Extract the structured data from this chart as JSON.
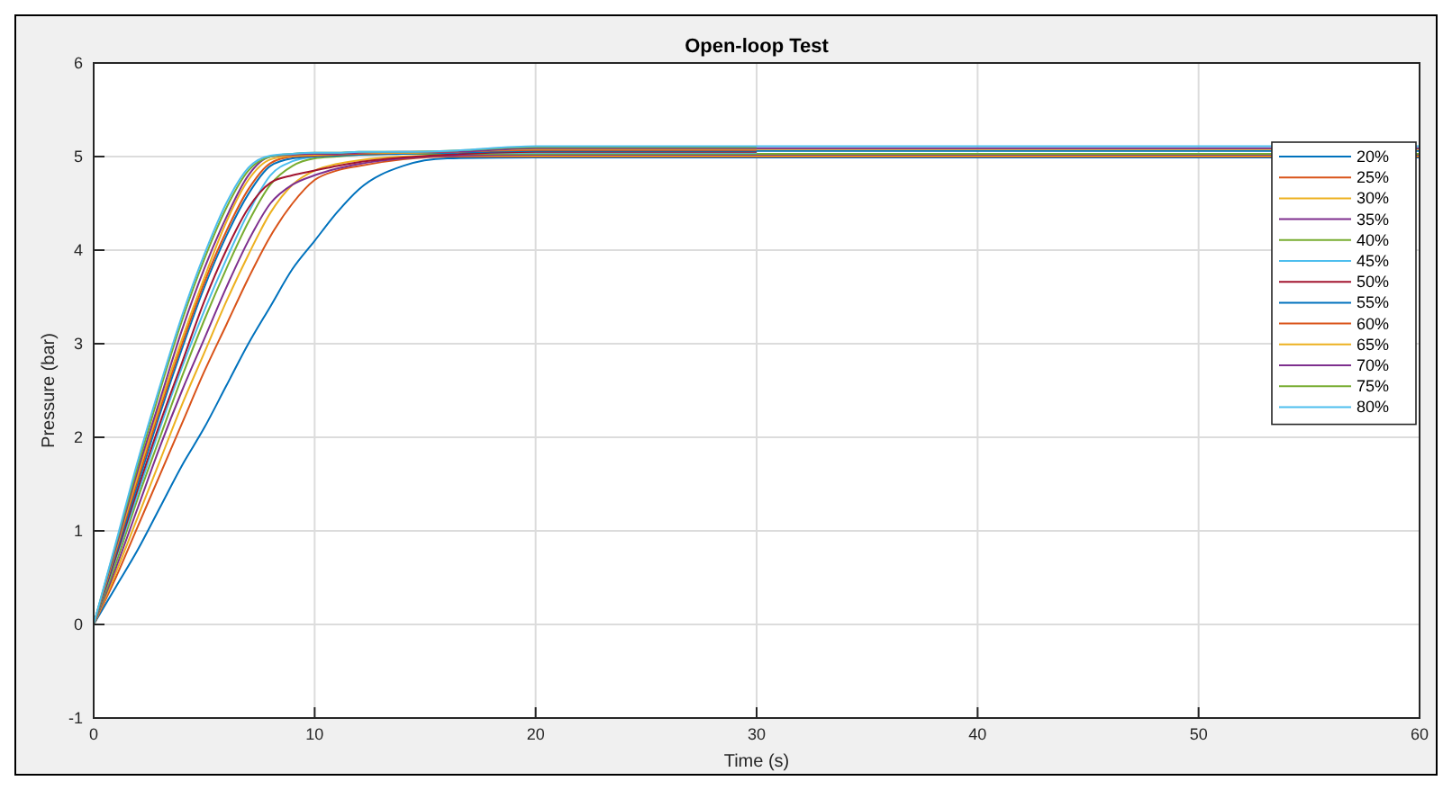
{
  "chart_data": {
    "type": "line",
    "title": "Open-loop Test",
    "xlabel": "Time (s)",
    "ylabel": "Pressure (bar)",
    "x": [
      0,
      1,
      2,
      3,
      4,
      5,
      6,
      7,
      8,
      9,
      10,
      11,
      12,
      14,
      16,
      20,
      30,
      45,
      60
    ],
    "xlim": [
      0,
      60
    ],
    "xticks": [
      0,
      10,
      20,
      30,
      40,
      50,
      60
    ],
    "ylim": [
      -1,
      6
    ],
    "yticks": [
      -1,
      0,
      1,
      2,
      3,
      4,
      5,
      6
    ],
    "grid": true,
    "legend": "top right",
    "line_style": "solid",
    "marker": "none",
    "series": [
      {
        "name": "20%",
        "color": "#0072bd",
        "values": [
          0,
          0.4,
          0.8,
          1.25,
          1.7,
          2.1,
          2.55,
          3.0,
          3.4,
          3.8,
          4.1,
          4.4,
          4.65,
          4.9,
          4.98,
          4.99,
          4.99,
          4.99,
          4.99
        ]
      },
      {
        "name": "25%",
        "color": "#d95319",
        "values": [
          0,
          0.5,
          1.05,
          1.6,
          2.15,
          2.7,
          3.2,
          3.7,
          4.15,
          4.5,
          4.75,
          4.85,
          4.9,
          4.97,
          5.0,
          5.0,
          5.0,
          5.0,
          5.0
        ]
      },
      {
        "name": "30%",
        "color": "#edb120",
        "values": [
          0,
          0.55,
          1.15,
          1.75,
          2.35,
          2.9,
          3.45,
          3.95,
          4.4,
          4.7,
          4.85,
          4.92,
          4.96,
          5.0,
          5.01,
          5.01,
          5.01,
          5.01,
          5.01
        ]
      },
      {
        "name": "35%",
        "color": "#7e2f8e",
        "values": [
          0,
          0.6,
          1.25,
          1.9,
          2.5,
          3.05,
          3.6,
          4.1,
          4.5,
          4.7,
          4.8,
          4.87,
          4.92,
          4.98,
          5.01,
          5.02,
          5.02,
          5.02,
          5.02
        ]
      },
      {
        "name": "40%",
        "color": "#77ac30",
        "values": [
          0,
          0.65,
          1.35,
          2.0,
          2.65,
          3.25,
          3.8,
          4.3,
          4.7,
          4.9,
          4.98,
          5.0,
          5.02,
          5.03,
          5.03,
          5.03,
          5.03,
          5.03,
          5.03
        ]
      },
      {
        "name": "45%",
        "color": "#4dbeee",
        "values": [
          0,
          0.7,
          1.4,
          2.1,
          2.75,
          3.35,
          3.9,
          4.4,
          4.8,
          4.95,
          5.0,
          5.02,
          5.03,
          5.04,
          5.04,
          5.04,
          5.04,
          null,
          null
        ]
      },
      {
        "name": "50%",
        "color": "#a2142f",
        "values": [
          0,
          0.72,
          1.45,
          2.15,
          2.8,
          3.45,
          4.0,
          4.45,
          4.72,
          4.8,
          4.85,
          4.9,
          4.94,
          4.99,
          5.02,
          5.05,
          5.05,
          null,
          null
        ]
      },
      {
        "name": "55%",
        "color": "#0072bd",
        "values": [
          0,
          0.75,
          1.5,
          2.25,
          2.95,
          3.6,
          4.15,
          4.6,
          4.9,
          4.98,
          5.0,
          5.01,
          5.02,
          5.03,
          5.04,
          5.06,
          5.06,
          5.06,
          5.06
        ]
      },
      {
        "name": "60%",
        "color": "#d95319",
        "values": [
          0,
          0.78,
          1.55,
          2.3,
          3.0,
          3.65,
          4.2,
          4.65,
          4.93,
          5.0,
          5.01,
          5.02,
          5.03,
          5.04,
          5.05,
          5.07,
          5.07,
          null,
          null
        ]
      },
      {
        "name": "65%",
        "color": "#edb120",
        "values": [
          0,
          0.8,
          1.6,
          2.35,
          3.05,
          3.7,
          4.3,
          4.75,
          4.97,
          5.01,
          5.02,
          5.03,
          5.04,
          5.04,
          5.05,
          5.08,
          5.08,
          5.08,
          5.08
        ]
      },
      {
        "name": "70%",
        "color": "#7e2f8e",
        "values": [
          0,
          0.82,
          1.65,
          2.4,
          3.15,
          3.8,
          4.35,
          4.8,
          5.0,
          5.02,
          5.03,
          5.03,
          5.04,
          5.05,
          5.05,
          5.09,
          5.09,
          5.09,
          5.09
        ]
      },
      {
        "name": "75%",
        "color": "#77ac30",
        "values": [
          0,
          0.85,
          1.7,
          2.5,
          3.25,
          3.9,
          4.45,
          4.85,
          5.0,
          5.03,
          5.04,
          5.04,
          5.05,
          5.05,
          5.06,
          5.1,
          5.1,
          null,
          null
        ]
      },
      {
        "name": "80%",
        "color": "#4dbeee",
        "values": [
          0,
          0.87,
          1.75,
          2.55,
          3.3,
          3.95,
          4.5,
          4.88,
          5.01,
          5.03,
          5.04,
          5.04,
          5.05,
          5.05,
          5.06,
          5.11,
          5.11,
          5.11,
          5.11
        ]
      }
    ]
  }
}
